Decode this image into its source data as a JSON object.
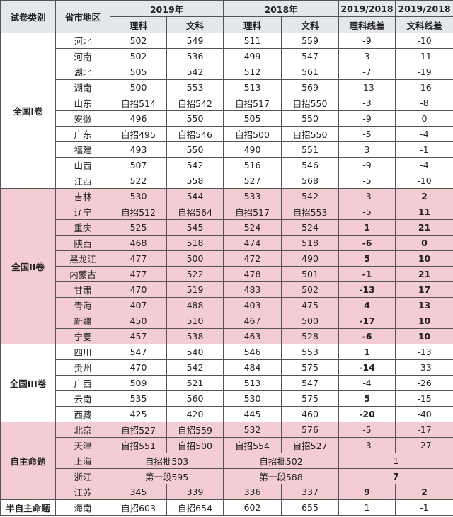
{
  "header": {
    "row1": [
      "试卷类别",
      "省市地区",
      "2019年",
      "2018年",
      "2019/2018",
      "2019/2018"
    ],
    "row2": [
      "理科",
      "文科",
      "理科",
      "文科",
      "理科线差",
      "文科线差"
    ]
  },
  "groups": [
    {
      "name": "全国I卷",
      "shaded": false,
      "rows": [
        [
          "河北",
          "502",
          "549",
          "511",
          "559",
          "-9",
          "-10"
        ],
        [
          "河南",
          "502",
          "536",
          "499",
          "547",
          "3",
          "-11"
        ],
        [
          "湖北",
          "505",
          "542",
          "512",
          "561",
          "-7",
          "-19"
        ],
        [
          "湖南",
          "500",
          "553",
          "513",
          "569",
          "-13",
          "-16"
        ],
        [
          "山东",
          "自招514",
          "自招542",
          "自招517",
          "自招550",
          "-3",
          "-8"
        ],
        [
          "安徽",
          "496",
          "550",
          "505",
          "550",
          "-9",
          "0"
        ],
        [
          "广东",
          "自招495",
          "自招546",
          "自招500",
          "自招550",
          "-5",
          "-4"
        ],
        [
          "福建",
          "493",
          "550",
          "490",
          "551",
          "3",
          "-1"
        ],
        [
          "山西",
          "507",
          "542",
          "516",
          "546",
          "-9",
          "-4"
        ],
        [
          "江西",
          "522",
          "558",
          "527",
          "568",
          "-5",
          "-10"
        ]
      ]
    },
    {
      "name": "全国II卷",
      "shaded": true,
      "rows": [
        [
          "吉林",
          "530",
          "544",
          "533",
          "542",
          "-3",
          {
            "text": "2",
            "bold": true
          }
        ],
        [
          "辽宁",
          "自招512",
          "自招564",
          "自招517",
          "自招553",
          "-5",
          {
            "text": "11",
            "bold": true
          }
        ],
        [
          "重庆",
          "525",
          "545",
          "524",
          "524",
          {
            "text": "1",
            "bold": true
          },
          {
            "text": "21",
            "bold": true
          }
        ],
        [
          "陕西",
          "468",
          "518",
          "474",
          "518",
          {
            "text": "-6",
            "bold": true
          },
          {
            "text": "0",
            "bold": true
          }
        ],
        [
          "黑龙江",
          "477",
          "500",
          "472",
          "490",
          {
            "text": "5",
            "bold": true
          },
          {
            "text": "10",
            "bold": true
          }
        ],
        [
          "内蒙古",
          "477",
          "522",
          "478",
          "501",
          {
            "text": "-1",
            "bold": true
          },
          {
            "text": "21",
            "bold": true
          }
        ],
        [
          "甘肃",
          "470",
          "519",
          "483",
          "502",
          {
            "text": "-13",
            "bold": true
          },
          {
            "text": "17",
            "bold": true
          }
        ],
        [
          "青海",
          "407",
          "488",
          "403",
          "475",
          {
            "text": "4",
            "bold": true
          },
          {
            "text": "13",
            "bold": true
          }
        ],
        [
          "新疆",
          "450",
          "510",
          "467",
          "500",
          {
            "text": "-17",
            "bold": true
          },
          {
            "text": "10",
            "bold": true
          }
        ],
        [
          "宁夏",
          "457",
          "538",
          "463",
          "528",
          {
            "text": "-6",
            "bold": true
          },
          {
            "text": "10",
            "bold": true
          }
        ]
      ]
    },
    {
      "name": "全国III卷",
      "shaded": false,
      "rows": [
        [
          "四川",
          "547",
          "540",
          "546",
          "553",
          {
            "text": "1",
            "bold": true
          },
          "-13"
        ],
        [
          "贵州",
          "470",
          "542",
          "484",
          "575",
          {
            "text": "-14",
            "bold": true
          },
          "-33"
        ],
        [
          "广西",
          "509",
          "521",
          "513",
          "547",
          "-4",
          "-26"
        ],
        [
          "云南",
          "535",
          "560",
          "530",
          "575",
          {
            "text": "5",
            "bold": true
          },
          "-15"
        ],
        [
          "西藏",
          "425",
          "420",
          "445",
          "460",
          {
            "text": "-20",
            "bold": true
          },
          "-40"
        ]
      ]
    },
    {
      "name": "自主命题",
      "shaded": true,
      "rows": [
        [
          "北京",
          "自招527",
          "自招559",
          "532",
          "576",
          "-5",
          "-17"
        ],
        [
          "天津",
          "自招551",
          "自招500",
          "自招554",
          "自招527",
          "-3",
          "-27"
        ],
        [
          "上海",
          {
            "text": "自招批503",
            "span": 2
          },
          {
            "text": "自招批502",
            "span": 2
          },
          {
            "text": "1",
            "span": 2
          }
        ],
        [
          "浙江",
          {
            "text": "第一段595",
            "span": 2
          },
          {
            "text": "第一段588",
            "span": 2
          },
          {
            "text": "7",
            "span": 2,
            "bold": true
          }
        ],
        [
          "江苏",
          "345",
          "339",
          "336",
          "337",
          {
            "text": "9",
            "bold": true
          },
          {
            "text": "2",
            "bold": true
          }
        ]
      ]
    },
    {
      "name": "半自主命题",
      "shaded": false,
      "rows": [
        [
          "海南",
          "自招603",
          "自招654",
          "602",
          "655",
          "1",
          "-1"
        ]
      ]
    }
  ]
}
